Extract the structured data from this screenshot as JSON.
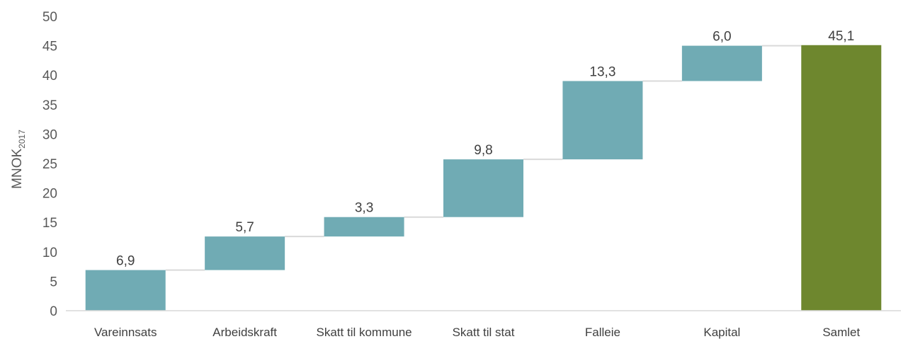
{
  "chart_data": {
    "type": "bar",
    "subtype": "waterfall",
    "categories": [
      "Vareinnsats",
      "Arbeidskraft",
      "Skatt til kommune",
      "Skatt til stat",
      "Falleie",
      "Kapital",
      "Samlet"
    ],
    "values": [
      6.9,
      5.7,
      3.3,
      9.8,
      13.3,
      6.0,
      45.1
    ],
    "data_labels": [
      "6,9",
      "5,7",
      "3,3",
      "9,8",
      "13,3",
      "6,0",
      "45,1"
    ],
    "ylabel": "MNOK",
    "ylabel_subscript": "2017",
    "ylim": [
      0,
      50
    ],
    "yticks": [
      "0",
      "5",
      "10",
      "15",
      "20",
      "25",
      "30",
      "35",
      "40",
      "45",
      "50"
    ],
    "grid": false,
    "legend": "none",
    "colors": {
      "increase": "#70abb4",
      "total": "#6e872e",
      "connector": "#d9d9d9",
      "axis": "#d9d9d9"
    }
  }
}
